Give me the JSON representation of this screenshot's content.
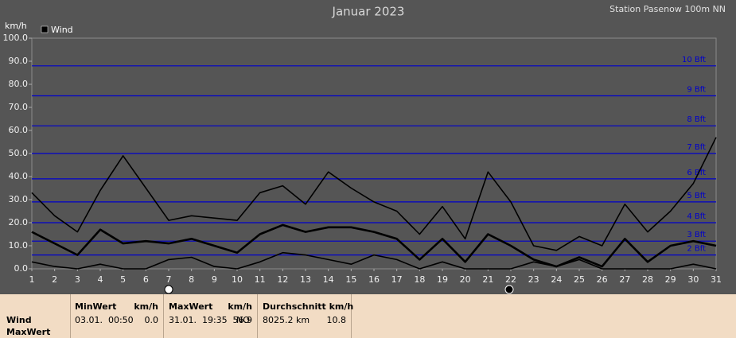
{
  "chart_data": {
    "type": "line",
    "title": "Januar 2023",
    "subtitle": "Station Pasenow  100m NN",
    "y_label": "km/h",
    "legend": "Wind",
    "x": [
      1,
      2,
      3,
      4,
      5,
      6,
      7,
      8,
      9,
      10,
      11,
      12,
      13,
      14,
      15,
      16,
      17,
      18,
      19,
      20,
      21,
      22,
      23,
      24,
      25,
      26,
      27,
      28,
      29,
      30,
      31
    ],
    "xlim": [
      1,
      31
    ],
    "xticks": [
      1,
      2,
      3,
      4,
      5,
      6,
      7,
      8,
      9,
      10,
      11,
      12,
      13,
      14,
      15,
      16,
      17,
      18,
      19,
      20,
      21,
      22,
      23,
      24,
      25,
      26,
      27,
      28,
      29,
      30,
      31
    ],
    "ylim": [
      0,
      100
    ],
    "yticks": [
      {
        "value": 0,
        "label": "0.0"
      },
      {
        "value": 10,
        "label": "10.0"
      },
      {
        "value": 20,
        "label": "20.0"
      },
      {
        "value": 30,
        "label": "30.0"
      },
      {
        "value": 40,
        "label": "40.0"
      },
      {
        "value": 50,
        "label": "50.0"
      },
      {
        "value": 60,
        "label": "60.0"
      },
      {
        "value": 70,
        "label": "70.0"
      },
      {
        "value": 80,
        "label": "80.0"
      },
      {
        "value": 90,
        "label": "90.0"
      },
      {
        "value": 100,
        "label": "100.0"
      }
    ],
    "bft_lines": [
      {
        "value": 6,
        "label": "2 Bft"
      },
      {
        "value": 12,
        "label": "3 Bft"
      },
      {
        "value": 20,
        "label": "4 Bft"
      },
      {
        "value": 29,
        "label": "5 Bft"
      },
      {
        "value": 39,
        "label": "6 Bft"
      },
      {
        "value": 50,
        "label": "7 Bft"
      },
      {
        "value": 62,
        "label": "8 Bft"
      },
      {
        "value": 75,
        "label": "9 Bft"
      },
      {
        "value": 88,
        "label": "10 Bft"
      }
    ],
    "bft_color": "#0000cc",
    "series": [
      {
        "color": "#000000",
        "values": [
          33,
          23,
          16,
          34,
          49,
          35,
          21,
          23,
          22,
          21,
          33,
          36,
          28,
          42,
          35,
          29,
          25,
          15,
          27,
          13,
          42,
          29,
          10,
          8,
          14,
          10,
          28,
          16,
          25,
          37,
          57
        ]
      },
      {
        "color": "#000000",
        "values": [
          16,
          11,
          6,
          17,
          11,
          12,
          11,
          13,
          10,
          7,
          15,
          19,
          16,
          18,
          18,
          16,
          13,
          4,
          13,
          3,
          15,
          10,
          4,
          1,
          5,
          1,
          13,
          3,
          10,
          12,
          10
        ]
      },
      {
        "color": "#000000",
        "values": [
          3,
          1,
          0,
          2,
          0,
          0,
          4,
          5,
          1,
          0,
          3,
          7,
          6,
          4,
          2,
          6,
          4,
          0,
          3,
          0,
          0,
          0,
          3,
          1,
          4,
          0,
          0,
          0,
          0,
          2,
          0
        ]
      }
    ]
  },
  "table": {
    "rows": [
      "Wind",
      "MaxWert"
    ],
    "min": {
      "header": "MinWert",
      "unit": "km/h",
      "time": "03.01.  00:50",
      "value": "0.0"
    },
    "max": {
      "header": "MaxWert",
      "unit": "km/h",
      "time": "31.01.  19:35",
      "direction": "NO",
      "value": "56.9"
    },
    "avg": {
      "header": "Durchschnitt km/h",
      "distance": "8025.2 km",
      "value": "10.8"
    }
  }
}
